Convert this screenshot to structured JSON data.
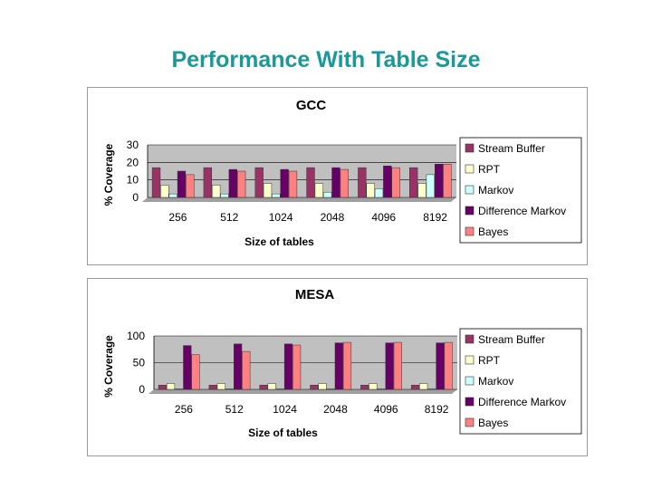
{
  "slide_title": "Performance With Table Size",
  "chart_data": [
    {
      "type": "bar",
      "title": "GCC",
      "xlabel": "Size of tables",
      "ylabel": "% Coverage",
      "ylim": [
        0,
        30
      ],
      "yticks": [
        "0",
        "10",
        "20",
        "30"
      ],
      "categories": [
        "256",
        "512",
        "1024",
        "2048",
        "4096",
        "8192"
      ],
      "series": [
        {
          "name": "Stream Buffer",
          "color": "#993366",
          "values": [
            17,
            17,
            17,
            17,
            17,
            17
          ]
        },
        {
          "name": "RPT",
          "color": "#ffffcc",
          "values": [
            7,
            7,
            8,
            8,
            8,
            8
          ]
        },
        {
          "name": "Markov",
          "color": "#ccffff",
          "values": [
            2,
            2,
            2,
            3,
            5,
            13
          ]
        },
        {
          "name": "Difference Markov",
          "color": "#660066",
          "values": [
            15,
            16,
            16,
            17,
            18,
            19
          ]
        },
        {
          "name": "Bayes",
          "color": "#ff8080",
          "values": [
            13,
            15,
            15,
            16,
            17,
            19
          ]
        }
      ],
      "grid": true,
      "legend": "right"
    },
    {
      "type": "bar",
      "title": "MESA",
      "xlabel": "Size of tables",
      "ylabel": "% Coverage",
      "ylim": [
        0,
        100
      ],
      "yticks": [
        "0",
        "50",
        "100"
      ],
      "categories": [
        "256",
        "512",
        "1024",
        "2048",
        "4096",
        "8192"
      ],
      "series": [
        {
          "name": "Stream Buffer",
          "color": "#993366",
          "values": [
            8,
            8,
            8,
            8,
            8,
            8
          ]
        },
        {
          "name": "RPT",
          "color": "#ffffcc",
          "values": [
            11,
            11,
            11,
            11,
            11,
            11
          ]
        },
        {
          "name": "Markov",
          "color": "#ccffff",
          "values": [
            1,
            1,
            1,
            1,
            1,
            1
          ]
        },
        {
          "name": "Difference Markov",
          "color": "#660066",
          "values": [
            82,
            85,
            85,
            87,
            87,
            87
          ]
        },
        {
          "name": "Bayes",
          "color": "#ff8080",
          "values": [
            65,
            71,
            83,
            88,
            88,
            88
          ]
        }
      ],
      "grid": true,
      "legend": "right"
    }
  ]
}
